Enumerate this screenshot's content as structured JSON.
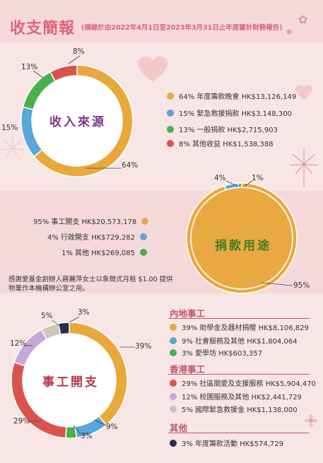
{
  "header": {
    "title": "收支簡報",
    "subtitle": "(摘錄於由2022年4月1日至2023年3月31日止年度審計財務報告)"
  },
  "income": {
    "center_label": "收入來源",
    "items": [
      {
        "pct": "64%",
        "label": "64% 年度籌款晚會 HK$13,126,149",
        "color": "#e8a93c",
        "value": 64
      },
      {
        "pct": "15%",
        "label": "15% 緊急救援捐款 HK$3,148,300",
        "color": "#5aa5d9",
        "value": 15
      },
      {
        "pct": "13%",
        "label": "13%  一般捐款 HK$2,715,903",
        "color": "#4ab04a",
        "value": 13
      },
      {
        "pct": "8%",
        "label": "8% 其他收益 HK$1,538,388",
        "color": "#d9534f",
        "value": 8
      }
    ]
  },
  "donation_use": {
    "center_label": "捐款用途",
    "items": [
      {
        "pct": "95%",
        "label": "95% 事工開支 HK$20,573,178",
        "color": "#e8a93c",
        "value": 95
      },
      {
        "pct": "4%",
        "label": "4% 行政開支 HK$729,282",
        "color": "#5aa5d9",
        "value": 4
      },
      {
        "pct": "1%",
        "label": "1% 其他 HK$269,085",
        "color": "#4ab04a",
        "value": 1
      }
    ],
    "note": "感謝愛基金創辦人蔣麗萍女士以象徵式月租 $1.00 提供物業作本機構辦公室之用。"
  },
  "expenses": {
    "center_label": "事工開支",
    "slices": [
      {
        "pct": "39%",
        "value": 39,
        "color": "#e8a93c"
      },
      {
        "pct": "9%",
        "value": 9,
        "color": "#5aa5d9"
      },
      {
        "pct": "3%",
        "value": 3,
        "color": "#4ab04a"
      },
      {
        "pct": "29%",
        "value": 29,
        "color": "#d9534f"
      },
      {
        "pct": "12%",
        "value": 12,
        "color": "#c9a7d9"
      },
      {
        "pct": "5%",
        "value": 5,
        "color": "#cfc4b8"
      },
      {
        "pct": "3%",
        "value": 3,
        "color": "#2b2f4a"
      }
    ],
    "groups": [
      {
        "heading": "內地事工",
        "items": [
          {
            "label": "39% 助學金及器材捐贈 HK$8,106,829",
            "color": "#e8a93c"
          },
          {
            "label": "9%  社會服務及其他 HK$1,804,064",
            "color": "#5aa5d9"
          },
          {
            "label": "3%  愛學坊 HK$603,357",
            "color": "#4ab04a"
          }
        ]
      },
      {
        "heading": "香港事工",
        "items": [
          {
            "label": "29% 社區關愛及支援服務 HK$5,904,470",
            "color": "#d9534f"
          },
          {
            "label": "12% 校園服務及其他 HK$2,441,729",
            "color": "#c9a7d9"
          },
          {
            "label": "5% 國際緊急救援金 HK$1,138,000",
            "color": "#cfc4b8"
          }
        ]
      },
      {
        "heading": "其他",
        "items": [
          {
            "label": "3% 年度籌款活動 HK$574,729",
            "color": "#2b2f4a"
          }
        ]
      }
    ]
  }
}
